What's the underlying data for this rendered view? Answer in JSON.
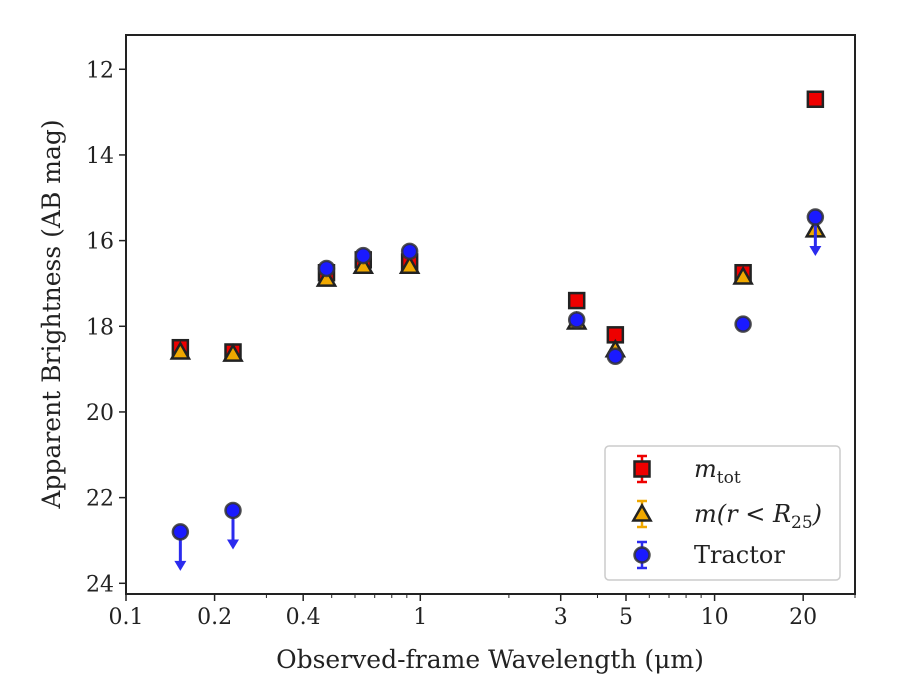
{
  "chart_data": {
    "type": "scatter",
    "title": "",
    "xlabel": "Observed-frame Wavelength (μm)",
    "ylabel": "Apparent Brightness (AB mag)",
    "xscale": "log",
    "xlim": [
      0.1,
      30
    ],
    "ylim": [
      24.25,
      11.2
    ],
    "y_inverted": true,
    "x_ticks": [
      {
        "value": 0.1,
        "label": "0.1"
      },
      {
        "value": 0.2,
        "label": "0.2"
      },
      {
        "value": 0.4,
        "label": "0.4"
      },
      {
        "value": 1,
        "label": "1"
      },
      {
        "value": 3,
        "label": "3"
      },
      {
        "value": 5,
        "label": "5"
      },
      {
        "value": 10,
        "label": "10"
      },
      {
        "value": 20,
        "label": "20"
      }
    ],
    "y_ticks": [
      {
        "value": 12,
        "label": "12"
      },
      {
        "value": 14,
        "label": "14"
      },
      {
        "value": 16,
        "label": "16"
      },
      {
        "value": 18,
        "label": "18"
      },
      {
        "value": 20,
        "label": "20"
      },
      {
        "value": 22,
        "label": "22"
      },
      {
        "value": 24,
        "label": "24"
      }
    ],
    "grid": false,
    "legend_position": "lower right",
    "series": [
      {
        "name": "m_tot",
        "legend_label": {
          "base": "m",
          "sub": "tot"
        },
        "marker": "square",
        "color": "#ee0000",
        "edge_color": "#222222",
        "points": [
          {
            "x": 0.153,
            "y": 18.5,
            "upper_limit": false
          },
          {
            "x": 0.231,
            "y": 18.6,
            "upper_limit": false
          },
          {
            "x": 0.48,
            "y": 16.75,
            "upper_limit": false
          },
          {
            "x": 0.64,
            "y": 16.45,
            "upper_limit": false
          },
          {
            "x": 0.92,
            "y": 16.5,
            "upper_limit": false
          },
          {
            "x": 3.4,
            "y": 17.4,
            "upper_limit": false
          },
          {
            "x": 4.6,
            "y": 18.2,
            "upper_limit": false
          },
          {
            "x": 12.5,
            "y": 16.75,
            "upper_limit": false
          },
          {
            "x": 22.0,
            "y": 12.7,
            "upper_limit": false
          }
        ]
      },
      {
        "name": "m(r < R25)",
        "legend_label": {
          "base": "m(r < R",
          "sub": "25",
          "after": ")"
        },
        "marker": "triangle",
        "color": "#f0a800",
        "edge_color": "#222222",
        "points": [
          {
            "x": 0.153,
            "y": 18.6,
            "upper_limit": false
          },
          {
            "x": 0.231,
            "y": 18.65,
            "upper_limit": false
          },
          {
            "x": 0.48,
            "y": 16.9,
            "upper_limit": false
          },
          {
            "x": 0.64,
            "y": 16.6,
            "upper_limit": false
          },
          {
            "x": 0.92,
            "y": 16.6,
            "upper_limit": false
          },
          {
            "x": 3.4,
            "y": 17.9,
            "upper_limit": false
          },
          {
            "x": 4.6,
            "y": 18.55,
            "upper_limit": false
          },
          {
            "x": 12.5,
            "y": 16.85,
            "upper_limit": false
          },
          {
            "x": 22.0,
            "y": 15.75,
            "upper_limit": false
          }
        ]
      },
      {
        "name": "Tractor",
        "legend_label": {
          "base": "Tractor",
          "sub": ""
        },
        "marker": "circle",
        "color": "#1a1aff",
        "edge_color": "#333333",
        "points": [
          {
            "x": 0.153,
            "y": 22.8,
            "upper_limit": true
          },
          {
            "x": 0.231,
            "y": 22.3,
            "upper_limit": true
          },
          {
            "x": 0.48,
            "y": 16.65,
            "upper_limit": false
          },
          {
            "x": 0.64,
            "y": 16.35,
            "upper_limit": false
          },
          {
            "x": 0.92,
            "y": 16.25,
            "upper_limit": false
          },
          {
            "x": 3.4,
            "y": 17.85,
            "upper_limit": false
          },
          {
            "x": 4.6,
            "y": 18.7,
            "upper_limit": false
          },
          {
            "x": 12.5,
            "y": 17.95,
            "upper_limit": false
          },
          {
            "x": 22.0,
            "y": 15.45,
            "upper_limit": true
          }
        ]
      }
    ]
  }
}
